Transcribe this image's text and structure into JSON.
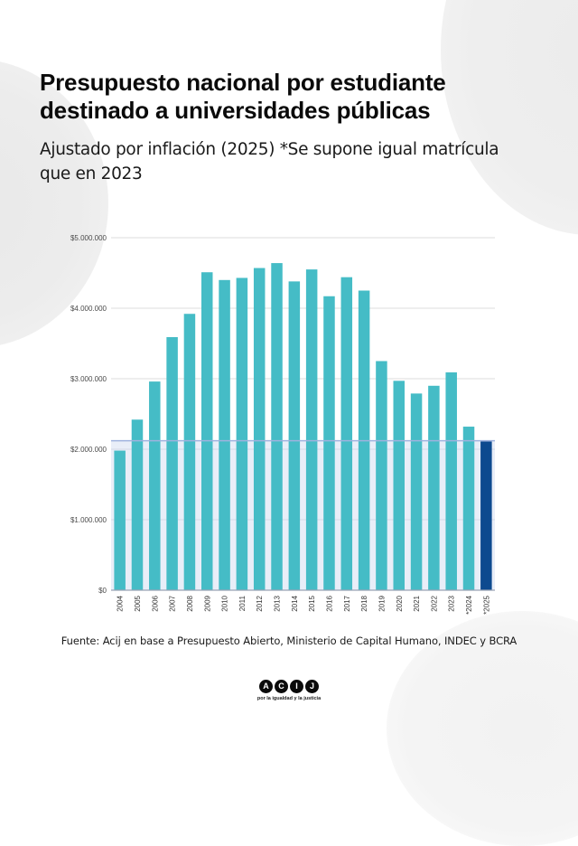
{
  "header": {
    "title": "Presupuesto nacional por estudiante destinado a universidades públicas",
    "subtitle": "Ajustado por inflación (2025) *Se supone igual matrícula que en 2023"
  },
  "footer": {
    "source": "Fuente: Acij en base a Presupuesto Abierto, Ministerio de Capital Humano, INDEC y BCRA",
    "logo_letters": [
      "A",
      "C",
      "I",
      "J"
    ],
    "logo_tagline": "por la igualdad y la justicia"
  },
  "colors": {
    "bar": "#45bcc6",
    "bar_highlight": "#0d4a8f",
    "reference_band": "#e9eef8",
    "reference_line": "#9fb2de",
    "grid": "#dcdcdc",
    "axis": "#9aa3b5"
  },
  "chart_data": {
    "type": "bar",
    "title": "Presupuesto nacional por estudiante destinado a universidades públicas",
    "subtitle": "Ajustado por inflación (2025) *Se supone igual matrícula que en 2023",
    "xlabel": "",
    "ylabel": "",
    "categories": [
      "2004",
      "2005",
      "2006",
      "2007",
      "2008",
      "2009",
      "2010",
      "2011",
      "2012",
      "2013",
      "2014",
      "2015",
      "2016",
      "2017",
      "2018",
      "2019",
      "2020",
      "2021",
      "2022",
      "2023",
      "*2024",
      "*2025"
    ],
    "values": [
      1980000,
      2420000,
      2960000,
      3590000,
      3920000,
      4510000,
      4400000,
      4430000,
      4570000,
      4640000,
      4380000,
      4550000,
      4170000,
      4440000,
      4250000,
      3250000,
      2970000,
      2790000,
      2900000,
      3090000,
      2320000,
      2110000
    ],
    "highlighted_category": "*2025",
    "reference_line_value": 2120000,
    "reference_band": [
      0,
      2120000
    ],
    "ylim": [
      0,
      5000000
    ],
    "yticks": [
      0,
      1000000,
      2000000,
      3000000,
      4000000,
      5000000
    ],
    "ytick_labels": [
      "$0",
      "$1.000.000",
      "$2.000.000",
      "$3.000.000",
      "$4.000.000",
      "$5.000.000"
    ],
    "grid": true,
    "legend": "none"
  }
}
